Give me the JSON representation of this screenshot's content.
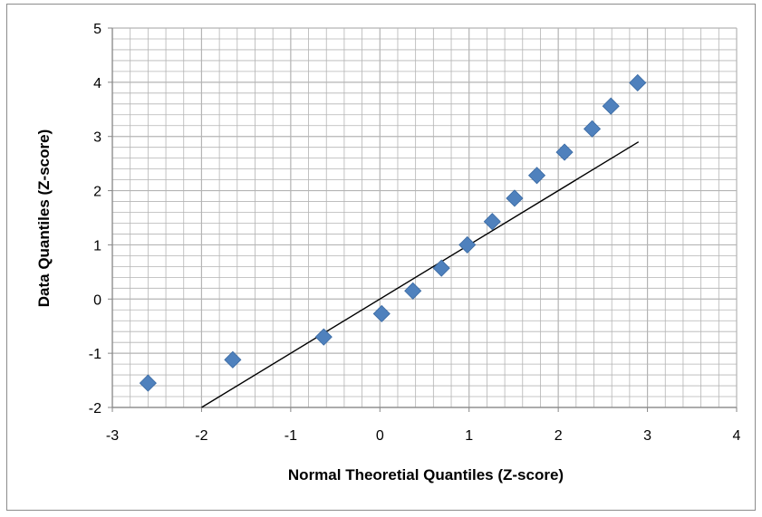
{
  "chart_data": {
    "type": "scatter",
    "title": "",
    "xlabel": "Normal Theoretial Quantiles (Z-score)",
    "ylabel": "Data Quantiles (Z-score)",
    "xlim": [
      -3,
      4
    ],
    "ylim": [
      -2,
      5
    ],
    "x_major_ticks": [
      -3,
      -2,
      -1,
      0,
      1,
      2,
      3,
      4
    ],
    "y_major_ticks": [
      -2,
      -1,
      0,
      1,
      2,
      3,
      4,
      5
    ],
    "grid": true,
    "minor_step": 0.2,
    "legend": "none",
    "marker": "diamond",
    "series": [
      {
        "points": [
          {
            "x": -2.6,
            "y": -1.55
          },
          {
            "x": -1.65,
            "y": -1.12
          },
          {
            "x": -0.63,
            "y": -0.7
          },
          {
            "x": 0.02,
            "y": -0.27
          },
          {
            "x": 0.37,
            "y": 0.15
          },
          {
            "x": 0.69,
            "y": 0.57
          },
          {
            "x": 0.98,
            "y": 1.0
          },
          {
            "x": 1.26,
            "y": 1.43
          },
          {
            "x": 1.51,
            "y": 1.86
          },
          {
            "x": 1.76,
            "y": 2.28
          },
          {
            "x": 2.07,
            "y": 2.71
          },
          {
            "x": 2.38,
            "y": 3.14
          },
          {
            "x": 2.59,
            "y": 3.56
          },
          {
            "x": 2.89,
            "y": 3.99
          }
        ]
      }
    ],
    "reference_line": {
      "x": [
        -2.0,
        2.9
      ],
      "y": [
        -2.0,
        2.9
      ]
    },
    "colors": {
      "marker": "#4F81BD",
      "marker_edge": "#3a6aa3",
      "line": "#000000",
      "grid": "#b4b4b4",
      "axis": "#868686"
    }
  }
}
